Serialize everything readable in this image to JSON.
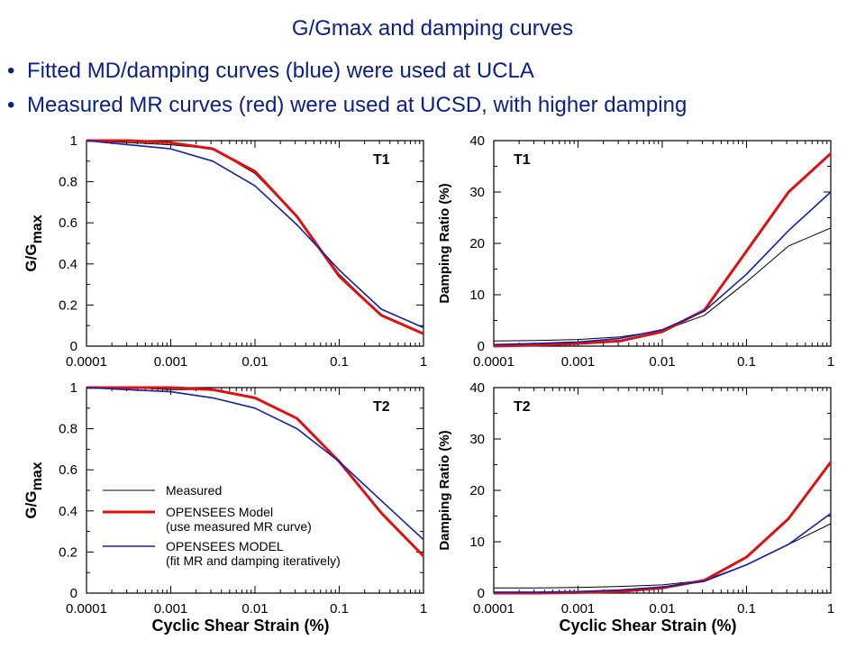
{
  "slide": {
    "title": "G/Gmax and damping curves",
    "bullets": [
      "Fitted MD/damping curves (blue) were used at UCLA",
      "Measured MR curves (red) were used at UCSD, with higher damping"
    ]
  },
  "colors": {
    "measured": "#000000",
    "red": "#e01010",
    "blue": "#1020b0",
    "text": "#0a1e8c"
  },
  "chart_data": [
    {
      "type": "line",
      "tag": "T1",
      "ylabel_main": "G/G",
      "ylabel_sub": "max",
      "xlabel": "",
      "xscale": "log",
      "xlim": [
        0.0001,
        1
      ],
      "ylim": [
        0,
        1
      ],
      "yticks": [
        0,
        0.2,
        0.4,
        0.6,
        0.8,
        1
      ],
      "ytick_labels": [
        "0",
        "0.2",
        "0.4",
        "0.6",
        "0.8",
        "1"
      ],
      "xtick_labels": [
        "0.0001",
        "0.001",
        "0.01",
        "0.1",
        "1"
      ],
      "x": [
        0.0001,
        0.000316,
        0.001,
        0.00316,
        0.01,
        0.0316,
        0.1,
        0.316,
        1
      ],
      "series": [
        {
          "key": "measured",
          "values": [
            1.0,
            0.99,
            0.98,
            0.96,
            0.84,
            0.63,
            0.35,
            0.15,
            0.06
          ]
        },
        {
          "key": "red",
          "values": [
            1.0,
            1.0,
            0.99,
            0.96,
            0.85,
            0.63,
            0.34,
            0.15,
            0.06
          ]
        },
        {
          "key": "blue",
          "values": [
            1.0,
            0.98,
            0.96,
            0.9,
            0.78,
            0.59,
            0.37,
            0.18,
            0.09
          ]
        }
      ]
    },
    {
      "type": "line",
      "tag": "T1",
      "ylabel_main": "Damping Ratio (%)",
      "xlabel": "",
      "xscale": "log",
      "xlim": [
        0.0001,
        1
      ],
      "ylim": [
        0,
        40
      ],
      "yticks": [
        0,
        10,
        20,
        30,
        40
      ],
      "ytick_labels": [
        "0",
        "10",
        "20",
        "30",
        "40"
      ],
      "xtick_labels": [
        "0.0001",
        "0.001",
        "0.01",
        "0.1",
        "1"
      ],
      "x": [
        0.0001,
        0.000316,
        0.001,
        0.00316,
        0.01,
        0.0316,
        0.1,
        0.316,
        1
      ],
      "series": [
        {
          "key": "measured",
          "values": [
            1.0,
            1.1,
            1.3,
            1.8,
            3.0,
            6.0,
            12.5,
            19.5,
            23.0
          ]
        },
        {
          "key": "red",
          "values": [
            0,
            0.2,
            0.5,
            1.0,
            2.8,
            7.0,
            18.5,
            30.0,
            37.5
          ]
        },
        {
          "key": "blue",
          "values": [
            0.3,
            0.5,
            0.8,
            1.5,
            3.2,
            6.8,
            14.0,
            22.5,
            30.0
          ]
        }
      ]
    },
    {
      "type": "line",
      "tag": "T2",
      "ylabel_main": "G/G",
      "ylabel_sub": "max",
      "xlabel": "Cyclic Shear Strain (%)",
      "xscale": "log",
      "xlim": [
        0.0001,
        1
      ],
      "ylim": [
        0,
        1
      ],
      "yticks": [
        0,
        0.2,
        0.4,
        0.6,
        0.8,
        1
      ],
      "ytick_labels": [
        "0",
        "0.2",
        "0.4",
        "0.6",
        "0.8",
        "1"
      ],
      "xtick_labels": [
        "0.0001",
        "0.001",
        "0.01",
        "0.1",
        "1"
      ],
      "x": [
        0.0001,
        0.000316,
        0.001,
        0.00316,
        0.01,
        0.0316,
        0.1,
        0.316,
        1
      ],
      "series": [
        {
          "key": "measured",
          "values": [
            1.0,
            1.0,
            0.99,
            0.99,
            0.95,
            0.85,
            0.64,
            0.39,
            0.18
          ]
        },
        {
          "key": "red",
          "values": [
            1.0,
            1.0,
            1.0,
            0.99,
            0.95,
            0.85,
            0.64,
            0.39,
            0.18
          ]
        },
        {
          "key": "blue",
          "values": [
            1.0,
            0.99,
            0.98,
            0.95,
            0.9,
            0.8,
            0.64,
            0.45,
            0.26
          ]
        }
      ],
      "legend": {
        "placement": "lower-left",
        "entries": [
          {
            "key": "measured",
            "lines": [
              "Measured"
            ]
          },
          {
            "key": "red",
            "lines": [
              "OPENSEES Model",
              "(use measured MR curve)"
            ]
          },
          {
            "key": "blue",
            "lines": [
              "OPENSEES MODEL",
              "(fit MR and damping iteratively)"
            ]
          }
        ]
      }
    },
    {
      "type": "line",
      "tag": "T2",
      "ylabel_main": "Damping Ratio (%)",
      "xlabel": "Cyclic Shear Strain (%)",
      "xscale": "log",
      "xlim": [
        0.0001,
        1
      ],
      "ylim": [
        0,
        40
      ],
      "yticks": [
        0,
        10,
        20,
        30,
        40
      ],
      "ytick_labels": [
        "0",
        "10",
        "20",
        "30",
        "40"
      ],
      "xtick_labels": [
        "0.0001",
        "0.001",
        "0.01",
        "0.1",
        "1"
      ],
      "x": [
        0.0001,
        0.000316,
        0.001,
        0.00316,
        0.01,
        0.0316,
        0.1,
        0.316,
        1
      ],
      "series": [
        {
          "key": "measured",
          "values": [
            1.0,
            1.0,
            1.1,
            1.3,
            1.6,
            2.5,
            5.5,
            9.5,
            13.5
          ]
        },
        {
          "key": "red",
          "values": [
            0,
            0,
            0.1,
            0.3,
            1.0,
            2.5,
            7.0,
            14.5,
            25.5
          ]
        },
        {
          "key": "blue",
          "values": [
            0.2,
            0.2,
            0.3,
            0.6,
            1.2,
            2.3,
            5.5,
            9.5,
            15.5
          ]
        }
      ]
    }
  ]
}
